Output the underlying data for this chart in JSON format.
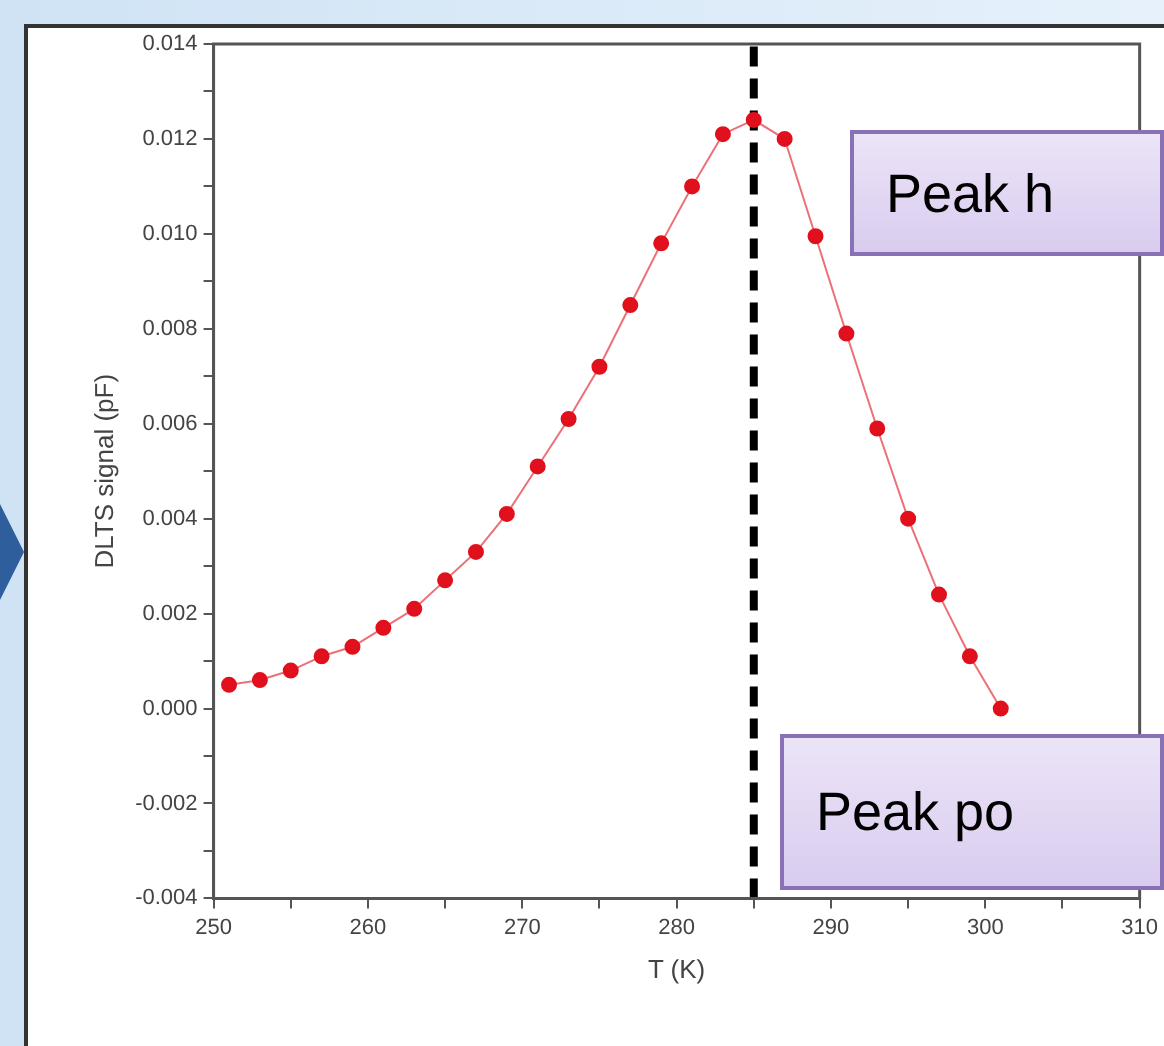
{
  "chart_data": {
    "type": "line",
    "xlabel": "T (K)",
    "ylabel": "DLTS signal (pF)",
    "x": [
      251,
      253,
      255,
      257,
      259,
      261,
      263,
      265,
      267,
      269,
      271,
      273,
      275,
      277,
      279,
      281,
      283,
      285,
      287,
      289,
      291,
      293,
      295,
      297,
      299,
      301
    ],
    "series": [
      {
        "color": "#e0101c",
        "values": [
          0.0005,
          0.0006,
          0.0008,
          0.0011,
          0.0013,
          0.0017,
          0.0021,
          0.0027,
          0.0033,
          0.0041,
          0.0051,
          0.0061,
          0.0072,
          0.0085,
          0.0098,
          0.011,
          0.0121,
          0.0124,
          0.012,
          0.00995,
          0.0079,
          0.0059,
          0.004,
          0.0024,
          0.0011,
          0.0
        ]
      }
    ],
    "xlim": [
      250,
      310
    ],
    "xticks": [
      250,
      {
        "value": 255,
        "label": null
      },
      260,
      {
        "value": 265,
        "label": null
      },
      270,
      {
        "value": 275,
        "label": null
      },
      280,
      {
        "value": 285,
        "label": null
      },
      290,
      {
        "value": 295,
        "label": null
      },
      300,
      {
        "value": 305,
        "label": null
      },
      310
    ],
    "ylim": [
      -0.004,
      0.014
    ],
    "yticks": [
      -0.004,
      {
        "value": -0.003,
        "label": null
      },
      -0.002,
      {
        "value": -0.001,
        "label": null
      },
      {
        "value": 0,
        "label": "0.000"
      },
      {
        "value": 0.001,
        "label": null
      },
      0.002,
      {
        "value": 0.003,
        "label": null
      },
      0.004,
      {
        "value": 0.005,
        "label": null
      },
      0.006,
      {
        "value": 0.007,
        "label": null
      },
      0.008,
      {
        "value": 0.009,
        "label": null
      },
      {
        "value": 0.01,
        "label": "0.010"
      },
      {
        "value": 0.011,
        "label": null
      },
      0.012,
      {
        "value": 0.013,
        "label": null
      },
      0.014
    ],
    "ref_lines": [
      {
        "axis": "x",
        "value": 285,
        "color": "#000000",
        "line_style": "dashed"
      }
    ],
    "annotations": [
      "Peak h",
      "Peak po"
    ],
    "marker": "circle",
    "line_style": "solid",
    "grid": false,
    "legend": false
  }
}
